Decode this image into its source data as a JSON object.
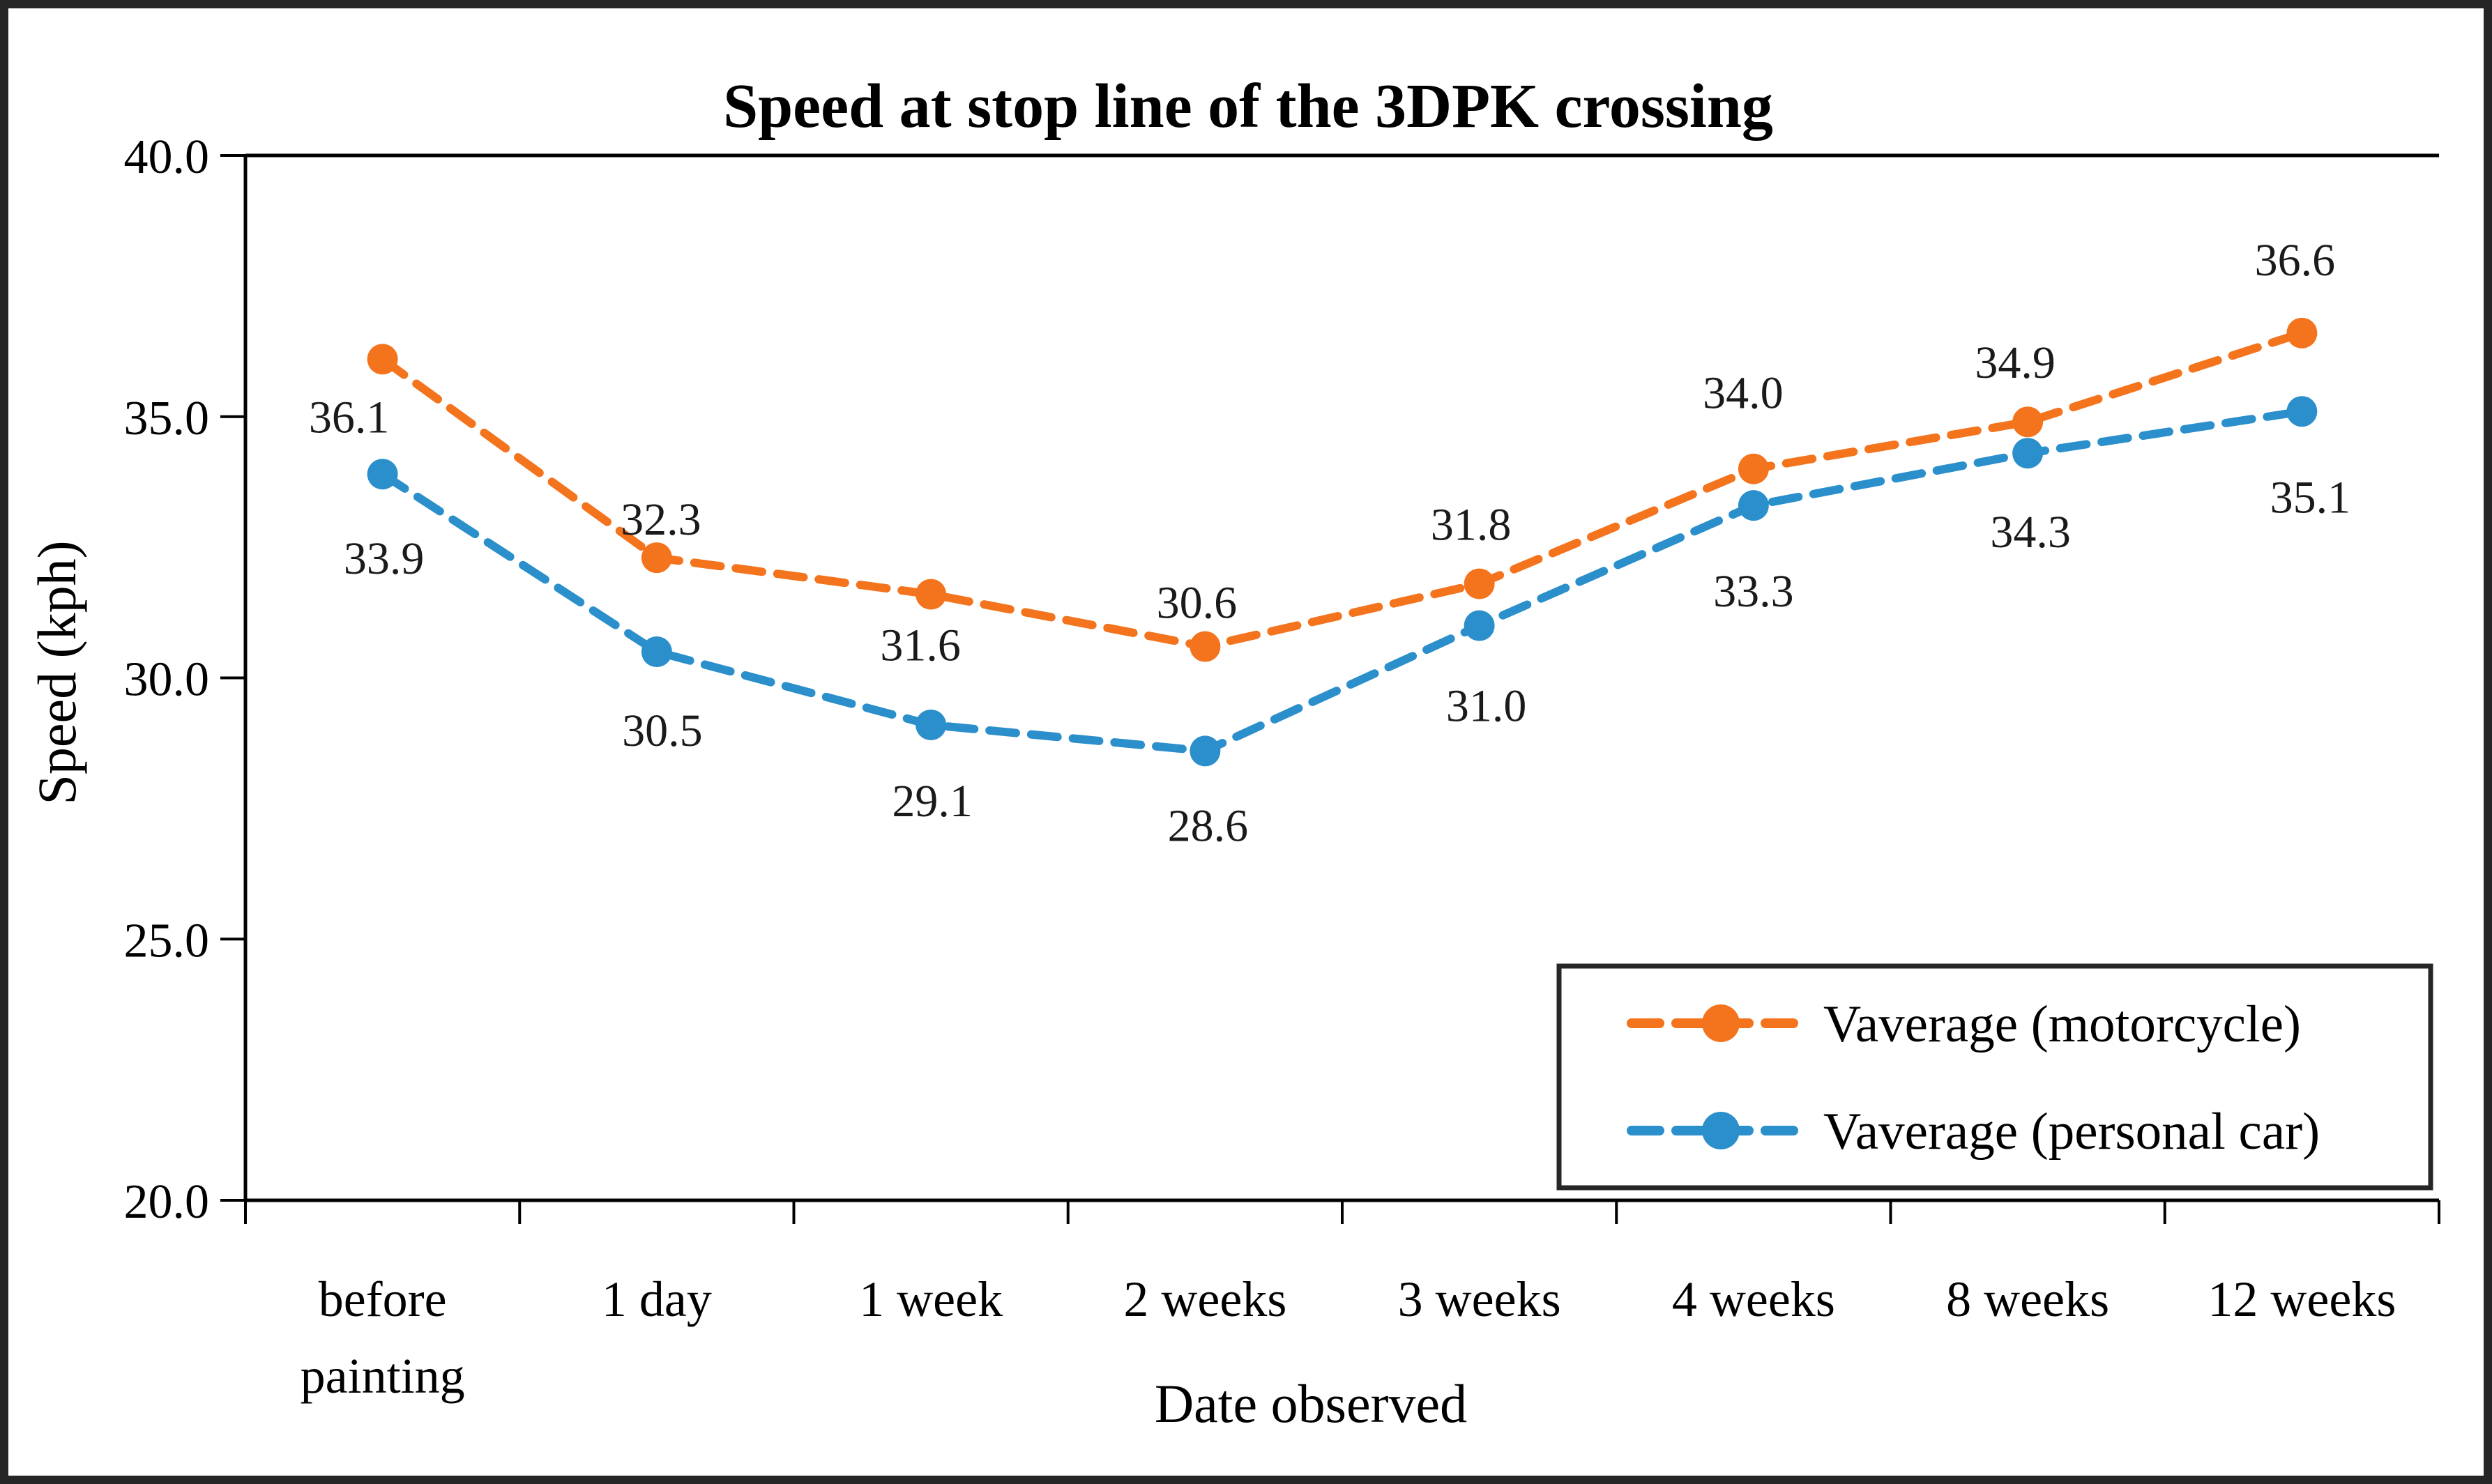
{
  "chart_data": {
    "type": "line",
    "title": "Speed at stop line of the 3DPK crossing",
    "xlabel": "Date observed",
    "ylabel": "Speed (kph)",
    "categories": [
      "before painting",
      "1 day",
      "1 week",
      "2 weeks",
      "3 weeks",
      "4 weeks",
      "8 weeks",
      "12 weeks"
    ],
    "series": [
      {
        "name": "Vaverage (motorcycle)",
        "color": "#F4731D",
        "line_style": "dashed",
        "marker": "circle",
        "values": [
          36.1,
          32.3,
          31.6,
          30.6,
          31.8,
          34.0,
          34.9,
          36.6
        ]
      },
      {
        "name": "Vaverage (personal car)",
        "color": "#2B8FCB",
        "line_style": "dashed",
        "marker": "circle",
        "values": [
          33.9,
          30.5,
          29.1,
          28.6,
          31.0,
          33.3,
          34.3,
          35.1
        ]
      }
    ],
    "ylim": [
      20,
      40
    ],
    "ytick_interval": 5,
    "ytick_labels": [
      "20.0",
      "25.0",
      "30.0",
      "35.0",
      "40.0"
    ],
    "grid": false,
    "data_labels": true,
    "legend_position": "inside-bottom-right",
    "legend_entries": [
      "Vaverage (motorcycle)",
      "Vaverage (personal car)"
    ],
    "style": {
      "frame_border_color": "#262626",
      "axis_color": "#000000",
      "label_color": "#1a1a1a",
      "background": "#ffffff"
    }
  }
}
